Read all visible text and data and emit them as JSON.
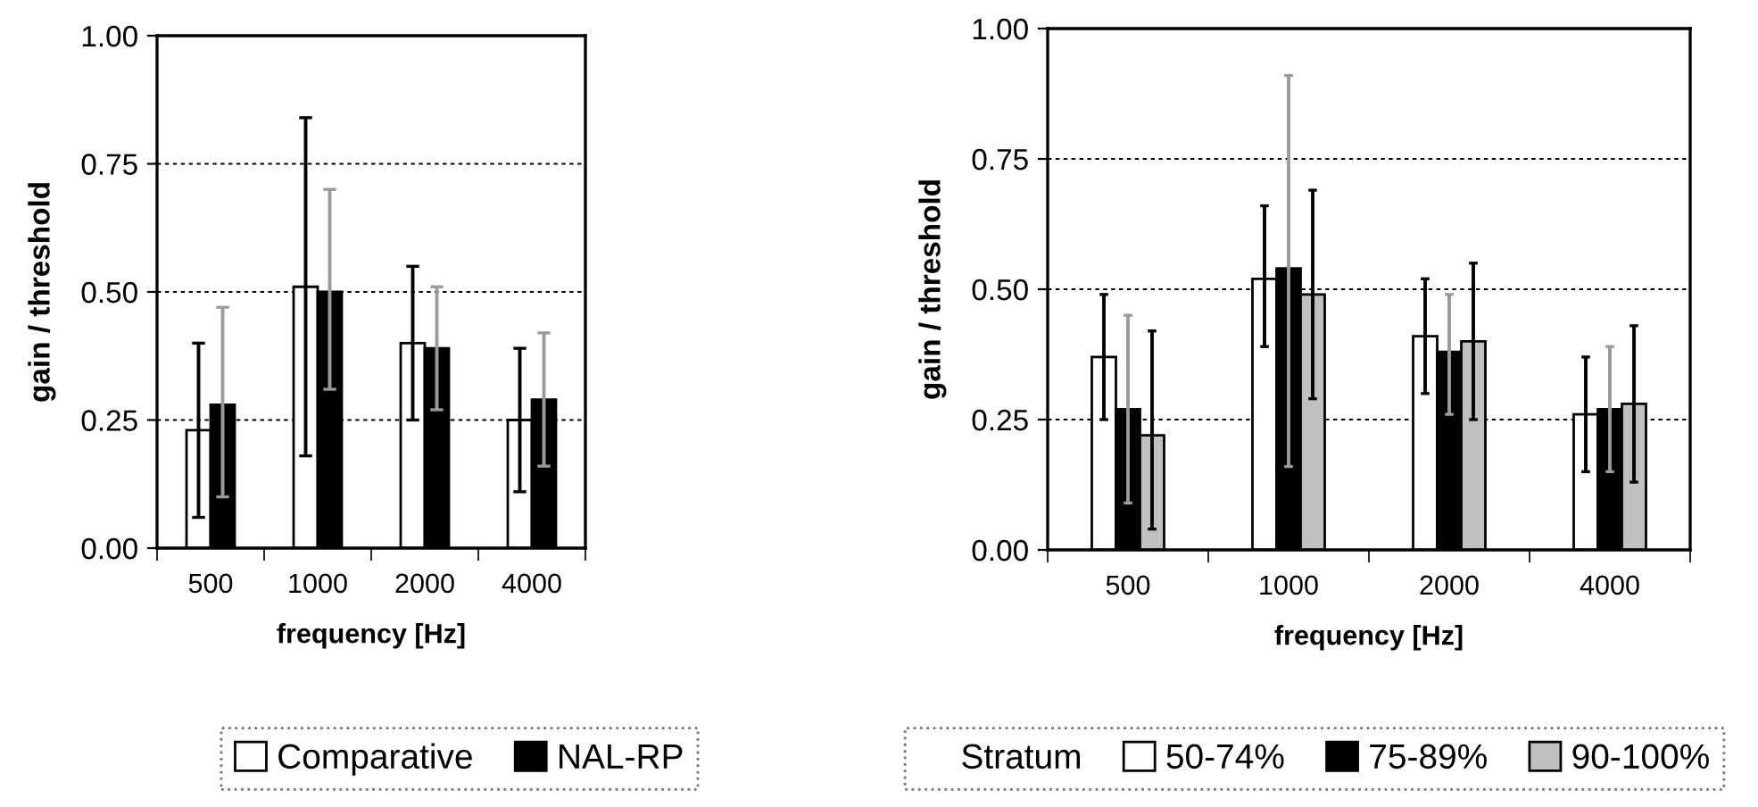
{
  "chart_data": [
    {
      "type": "bar",
      "xlabel": "frequency [Hz]",
      "ylabel": "gain / threshold",
      "categories": [
        "500",
        "1000",
        "2000",
        "4000"
      ],
      "series": [
        {
          "name": "Comparative",
          "color": "#ffffff",
          "values": [
            0.23,
            0.51,
            0.4,
            0.25
          ],
          "errors": [
            [
              0.06,
              0.4
            ],
            [
              0.18,
              0.84
            ],
            [
              0.25,
              0.55
            ],
            [
              0.11,
              0.39
            ]
          ]
        },
        {
          "name": "NAL-RP",
          "color": "#000000",
          "values": [
            0.28,
            0.5,
            0.39,
            0.29
          ],
          "errors": [
            [
              0.1,
              0.47
            ],
            [
              0.31,
              0.7
            ],
            [
              0.27,
              0.51
            ],
            [
              0.16,
              0.42
            ]
          ]
        }
      ],
      "ylim": [
        0,
        1
      ],
      "yticks": [
        {
          "value": 0,
          "label": "0.00"
        },
        {
          "value": 0.25,
          "label": "0.25"
        },
        {
          "value": 0.5,
          "label": "0.50"
        },
        {
          "value": 0.75,
          "label": "0.75"
        },
        {
          "value": 1,
          "label": "1.00"
        }
      ],
      "grid": "y",
      "legend": "bottom"
    },
    {
      "type": "bar",
      "xlabel": "frequency [Hz]",
      "ylabel": "gain / threshold",
      "legend_title": "Stratum",
      "categories": [
        "500",
        "1000",
        "2000",
        "4000"
      ],
      "series": [
        {
          "name": "50-74%",
          "color": "#ffffff",
          "values": [
            0.37,
            0.52,
            0.41,
            0.26
          ],
          "errors": [
            [
              0.25,
              0.49
            ],
            [
              0.39,
              0.66
            ],
            [
              0.3,
              0.52
            ],
            [
              0.15,
              0.37
            ]
          ]
        },
        {
          "name": "75-89%",
          "color": "#000000",
          "values": [
            0.27,
            0.54,
            0.38,
            0.27
          ],
          "errors": [
            [
              0.09,
              0.45
            ],
            [
              0.16,
              0.91
            ],
            [
              0.26,
              0.49
            ],
            [
              0.15,
              0.39
            ]
          ]
        },
        {
          "name": "90-100%",
          "color": "#c0c0c0",
          "values": [
            0.22,
            0.49,
            0.4,
            0.28
          ],
          "errors": [
            [
              0.04,
              0.42
            ],
            [
              0.29,
              0.69
            ],
            [
              0.25,
              0.55
            ],
            [
              0.13,
              0.43
            ]
          ]
        }
      ],
      "ylim": [
        0,
        1
      ],
      "yticks": [
        {
          "value": 0,
          "label": "0.00"
        },
        {
          "value": 0.25,
          "label": "0.25"
        },
        {
          "value": 0.5,
          "label": "0.50"
        },
        {
          "value": 0.75,
          "label": "0.75"
        },
        {
          "value": 1,
          "label": "1.00"
        }
      ],
      "grid": "y",
      "legend": "bottom"
    }
  ]
}
